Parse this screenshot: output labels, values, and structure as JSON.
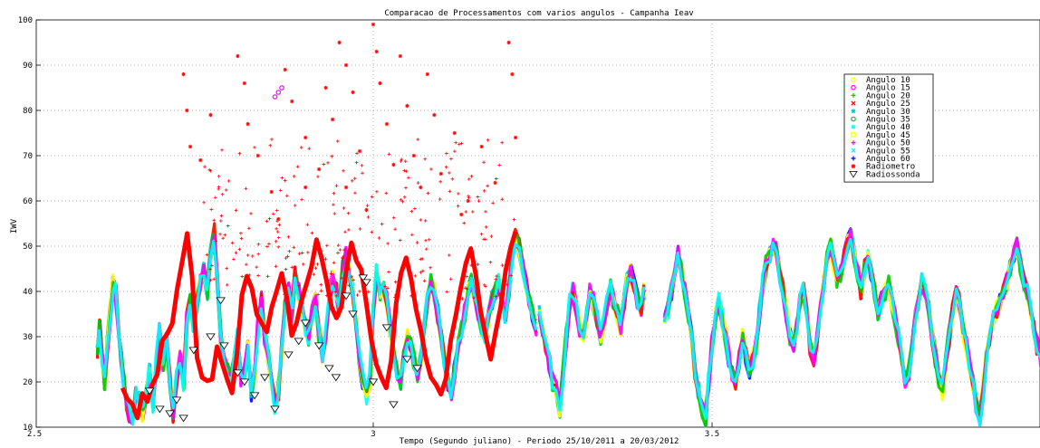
{
  "chart_data": {
    "type": "scatter",
    "title": "Comparacao de Processamentos com varios angulos - Campanha Ieav",
    "xlabel": "Tempo (Segundo juliano) - Periodo 25/10/2011 a 20/03/2012",
    "ylabel": "IWV",
    "xlim": [
      2.5,
      3.25
    ],
    "ylim": [
      10,
      100
    ],
    "x_ticks": [
      2.5,
      3,
      3.5
    ],
    "x_tick_labels": [
      "2.5",
      "3",
      "3.5"
    ],
    "y_ticks": [
      10,
      20,
      30,
      40,
      50,
      60,
      70,
      80,
      90,
      100
    ],
    "y_tick_labels": [
      "10",
      "20",
      "30",
      "40",
      "50",
      "60",
      "70",
      "80",
      "90",
      "100"
    ],
    "grid": "dotted",
    "legend_position": "upper-right",
    "series": [
      {
        "name": "Angulo 10",
        "color": "#ffff00",
        "marker": "circle"
      },
      {
        "name": "Angulo 15",
        "color": "#ff00ff",
        "marker": "circle"
      },
      {
        "name": "Angulo 20",
        "color": "#00cc00",
        "marker": "plus"
      },
      {
        "name": "Angulo 25",
        "color": "#ff0000",
        "marker": "x"
      },
      {
        "name": "Angulo 30",
        "color": "#00c8c8",
        "marker": "asterisk"
      },
      {
        "name": "Angulo 35",
        "color": "#00c800",
        "marker": "circle"
      },
      {
        "name": "Angulo 40",
        "color": "#00ffff",
        "marker": "asterisk"
      },
      {
        "name": "Angulo 45",
        "color": "#ffff00",
        "marker": "square"
      },
      {
        "name": "Angulo 50",
        "color": "#ff00ff",
        "marker": "plus"
      },
      {
        "name": "Angulo 55",
        "color": "#00ffff",
        "marker": "x"
      },
      {
        "name": "Angulo 60",
        "color": "#0000ff",
        "marker": "plus"
      },
      {
        "name": "Radiometro",
        "color": "#ff0000",
        "marker": "asterisk"
      },
      {
        "name": "Radiossonda",
        "color": "#000000",
        "marker": "triangle-down"
      }
    ],
    "gnss_segments": [
      {
        "x": [
          2.593,
          2.596,
          2.6,
          2.604,
          2.608,
          2.612,
          2.616,
          2.62,
          2.624,
          2.628,
          2.632,
          2.636,
          2.64,
          2.645,
          2.65,
          2.655,
          2.66,
          2.665,
          2.67,
          2.675,
          2.68,
          2.685,
          2.69,
          2.695,
          2.7,
          2.705,
          2.71,
          2.715,
          2.72,
          2.725,
          2.73,
          2.735,
          2.74,
          2.745,
          2.75,
          2.755,
          2.76,
          2.765,
          2.77,
          2.775,
          2.78,
          2.785,
          2.79,
          2.795,
          2.8,
          2.805,
          2.81,
          2.815,
          2.82,
          2.825,
          2.83,
          2.835,
          2.84,
          2.845,
          2.85,
          2.855,
          2.86,
          2.865,
          2.87,
          2.875,
          2.88,
          2.885,
          2.89,
          2.895,
          2.9,
          2.905,
          2.91,
          2.915,
          2.92,
          2.925,
          2.93,
          2.935,
          2.94,
          2.945,
          2.95,
          2.955,
          2.96,
          2.965,
          2.97,
          2.975,
          2.98,
          2.985,
          2.99,
          2.995,
          3.0,
          3.005,
          3.01,
          3.015,
          3.02,
          3.025,
          3.03,
          3.035,
          3.04,
          3.045,
          3.05,
          3.055,
          3.06,
          3.065,
          3.07,
          3.075,
          3.08,
          3.085,
          3.09,
          3.095,
          3.1,
          3.105,
          3.11,
          3.115,
          3.12,
          3.125,
          3.13,
          3.135,
          3.14,
          3.145,
          3.15,
          3.155,
          3.16,
          3.165,
          3.17,
          3.175,
          3.18,
          3.185,
          3.19,
          3.195,
          3.2,
          3.205,
          3.21,
          3.215,
          3.22,
          3.225,
          3.23,
          3.235,
          3.24
        ],
        "y": [
          27,
          33,
          25,
          20,
          28,
          35,
          42,
          40,
          32,
          25,
          20,
          15,
          13,
          12,
          17,
          16,
          13,
          17,
          22,
          15,
          25,
          31,
          24,
          30,
          20,
          13,
          21,
          26,
          20,
          34,
          38,
          33,
          38,
          42,
          45,
          40,
          48,
          53,
          42,
          30,
          24,
          22,
          20,
          25,
          30,
          20,
          22,
          27,
          17,
          22,
          32,
          38,
          30,
          25,
          20,
          15,
          18,
          28,
          38,
          40,
          35,
          44,
          40,
          36,
          32,
          30,
          35,
          38,
          31,
          26,
          30,
          38,
          43,
          40,
          36,
          45,
          48,
          44,
          40,
          32,
          25,
          20,
          17,
          20,
          35,
          44,
          40,
          42,
          38,
          32,
          27,
          22,
          20,
          25,
          30,
          28,
          25,
          22,
          25,
          32,
          38,
          42,
          40,
          35,
          30,
          25,
          20,
          18,
          22,
          28,
          32,
          35,
          40,
          42,
          38,
          35,
          32,
          30,
          34,
          38,
          40,
          42,
          38,
          35,
          40,
          48,
          52,
          50,
          46,
          42,
          38,
          35,
          32
        ]
      },
      {
        "x": [
          3.245,
          3.25,
          3.255,
          3.26,
          3.265,
          3.27,
          3.275,
          3.28,
          3.285,
          3.29,
          3.295,
          3.3,
          3.305,
          3.31,
          3.315,
          3.32,
          3.325,
          3.33,
          3.335,
          3.34,
          3.345,
          3.35,
          3.355,
          3.36,
          3.365,
          3.37,
          3.375,
          3.38,
          3.385,
          3.39,
          3.395,
          3.4
        ],
        "y": [
          35,
          32,
          28,
          24,
          20,
          18,
          14,
          22,
          30,
          38,
          40,
          36,
          32,
          30,
          35,
          40,
          38,
          34,
          30,
          33,
          37,
          41,
          38,
          35,
          32,
          38,
          42,
          44,
          42,
          38,
          36,
          40
        ]
      },
      {
        "x": [
          3.43,
          3.435,
          3.44,
          3.445,
          3.45,
          3.455,
          3.46,
          3.465,
          3.47,
          3.475,
          3.48,
          3.485,
          3.49,
          3.495,
          3.5,
          3.505,
          3.51,
          3.515,
          3.52,
          3.525,
          3.53,
          3.535,
          3.54,
          3.545,
          3.55,
          3.555,
          3.56,
          3.565,
          3.57,
          3.575,
          3.58,
          3.585,
          3.59,
          3.595,
          3.6,
          3.605,
          3.61,
          3.615,
          3.62,
          3.625,
          3.63,
          3.635,
          3.64,
          3.645,
          3.65,
          3.655,
          3.66,
          3.665,
          3.67,
          3.675,
          3.68,
          3.685,
          3.69,
          3.695,
          3.7,
          3.705,
          3.71,
          3.715,
          3.72,
          3.725,
          3.73,
          3.735,
          3.74,
          3.745,
          3.75,
          3.755,
          3.76,
          3.765,
          3.77,
          3.775,
          3.78,
          3.785,
          3.79,
          3.795,
          3.8,
          3.805,
          3.81,
          3.815,
          3.82,
          3.825,
          3.83,
          3.835,
          3.84,
          3.845,
          3.85,
          3.855,
          3.86,
          3.865,
          3.87,
          3.875,
          3.88,
          3.885,
          3.89,
          3.895,
          3.9,
          3.905,
          3.91,
          3.915,
          3.92,
          3.925,
          3.93,
          3.935,
          3.94,
          3.945,
          3.95,
          3.955,
          3.96,
          3.965,
          3.97,
          3.975,
          3.98,
          3.985,
          3.99,
          3.995,
          4.0,
          4.005,
          4.01,
          4.015,
          4.02,
          4.025,
          4.03,
          4.035,
          4.04,
          4.045,
          4.05,
          4.055,
          4.06,
          4.065
        ],
        "y": [
          34,
          36,
          40,
          45,
          48,
          44,
          40,
          35,
          30,
          22,
          18,
          14,
          12,
          20,
          28,
          35,
          38,
          34,
          30,
          25,
          22,
          20,
          25,
          30,
          26,
          22,
          25,
          28,
          35,
          42,
          46,
          48,
          50,
          49,
          44,
          40,
          35,
          30,
          28,
          32,
          38,
          40,
          35,
          28,
          25,
          30,
          36,
          42,
          48,
          50,
          46,
          42,
          44,
          48,
          51,
          52,
          48,
          44,
          40,
          45,
          48,
          44,
          40,
          35,
          38,
          40,
          42,
          38,
          34,
          30,
          25,
          20,
          22,
          28,
          34,
          38,
          42,
          40,
          36,
          30,
          25,
          20,
          18,
          24,
          30,
          36,
          40,
          38,
          32,
          28,
          24,
          20,
          15,
          12,
          18,
          25,
          30,
          34,
          36,
          38,
          40,
          42,
          45,
          48,
          50,
          46,
          42,
          40,
          36,
          32,
          28,
          25,
          20,
          16,
          15,
          20,
          25,
          30,
          35,
          38,
          40,
          44,
          48,
          44,
          36,
          28,
          22,
          25
        ]
      }
    ],
    "radiometro_band": {
      "x_range": [
        2.63,
        3.21
      ],
      "y": [
        20,
        16,
        14,
        13,
        16,
        15,
        18,
        22,
        28,
        30,
        34,
        40,
        48,
        54,
        44,
        26,
        22,
        20,
        22,
        28,
        24,
        20,
        18,
        26,
        38,
        44,
        40,
        36,
        32,
        30,
        36,
        40,
        44,
        38,
        30,
        34,
        38,
        42,
        46,
        50,
        46,
        42,
        38,
        34,
        38,
        46,
        50,
        48,
        44,
        38,
        30,
        25,
        20,
        18,
        26,
        36,
        44,
        48,
        42,
        36,
        30,
        26,
        22,
        20,
        18,
        22,
        30,
        36,
        42,
        46,
        50,
        44,
        36,
        30,
        26,
        30,
        36,
        44,
        50,
        52
      ]
    },
    "radiometro_outliers": [
      {
        "x": 2.72,
        "y": 88
      },
      {
        "x": 2.725,
        "y": 80
      },
      {
        "x": 2.73,
        "y": 72
      },
      {
        "x": 2.745,
        "y": 69
      },
      {
        "x": 2.76,
        "y": 79
      },
      {
        "x": 2.8,
        "y": 92
      },
      {
        "x": 2.81,
        "y": 86
      },
      {
        "x": 2.815,
        "y": 77
      },
      {
        "x": 2.83,
        "y": 70
      },
      {
        "x": 2.85,
        "y": 62
      },
      {
        "x": 2.87,
        "y": 89
      },
      {
        "x": 2.88,
        "y": 82
      },
      {
        "x": 2.9,
        "y": 74
      },
      {
        "x": 2.92,
        "y": 67
      },
      {
        "x": 2.93,
        "y": 85
      },
      {
        "x": 2.94,
        "y": 78
      },
      {
        "x": 2.95,
        "y": 95
      },
      {
        "x": 2.96,
        "y": 90
      },
      {
        "x": 2.97,
        "y": 84
      },
      {
        "x": 2.98,
        "y": 71
      },
      {
        "x": 3.0,
        "y": 99
      },
      {
        "x": 3.005,
        "y": 93
      },
      {
        "x": 3.01,
        "y": 86
      },
      {
        "x": 3.02,
        "y": 77
      },
      {
        "x": 3.04,
        "y": 92
      },
      {
        "x": 3.05,
        "y": 81
      },
      {
        "x": 3.06,
        "y": 70
      },
      {
        "x": 3.08,
        "y": 88
      },
      {
        "x": 3.09,
        "y": 79
      },
      {
        "x": 3.1,
        "y": 66
      },
      {
        "x": 3.12,
        "y": 75
      },
      {
        "x": 3.14,
        "y": 60
      },
      {
        "x": 3.16,
        "y": 72
      },
      {
        "x": 3.18,
        "y": 64
      },
      {
        "x": 3.2,
        "y": 95
      },
      {
        "x": 3.205,
        "y": 88
      },
      {
        "x": 3.21,
        "y": 74
      },
      {
        "x": 2.9,
        "y": 63
      },
      {
        "x": 2.99,
        "y": 58
      },
      {
        "x": 3.03,
        "y": 68
      },
      {
        "x": 3.07,
        "y": 63
      },
      {
        "x": 2.86,
        "y": 56
      },
      {
        "x": 2.96,
        "y": 63
      },
      {
        "x": 3.13,
        "y": 57
      }
    ],
    "magenta_cluster": [
      {
        "x": 2.855,
        "y": 83
      },
      {
        "x": 2.86,
        "y": 84
      },
      {
        "x": 2.865,
        "y": 85
      }
    ],
    "radiossonda": [
      {
        "x": 2.67,
        "y": 18
      },
      {
        "x": 2.685,
        "y": 14
      },
      {
        "x": 2.7,
        "y": 13
      },
      {
        "x": 2.71,
        "y": 16
      },
      {
        "x": 2.72,
        "y": 12
      },
      {
        "x": 2.735,
        "y": 27
      },
      {
        "x": 2.76,
        "y": 30
      },
      {
        "x": 2.775,
        "y": 38
      },
      {
        "x": 2.78,
        "y": 28
      },
      {
        "x": 2.8,
        "y": 22
      },
      {
        "x": 2.81,
        "y": 20
      },
      {
        "x": 2.825,
        "y": 17
      },
      {
        "x": 2.84,
        "y": 21
      },
      {
        "x": 2.855,
        "y": 14
      },
      {
        "x": 2.875,
        "y": 26
      },
      {
        "x": 2.89,
        "y": 29
      },
      {
        "x": 2.9,
        "y": 33
      },
      {
        "x": 2.92,
        "y": 28
      },
      {
        "x": 2.935,
        "y": 23
      },
      {
        "x": 2.945,
        "y": 21
      },
      {
        "x": 2.96,
        "y": 39
      },
      {
        "x": 2.97,
        "y": 35
      },
      {
        "x": 2.985,
        "y": 43
      },
      {
        "x": 2.99,
        "y": 42
      },
      {
        "x": 3.0,
        "y": 20
      },
      {
        "x": 3.02,
        "y": 32
      },
      {
        "x": 3.03,
        "y": 15
      },
      {
        "x": 3.05,
        "y": 25
      },
      {
        "x": 3.065,
        "y": 23
      }
    ]
  }
}
